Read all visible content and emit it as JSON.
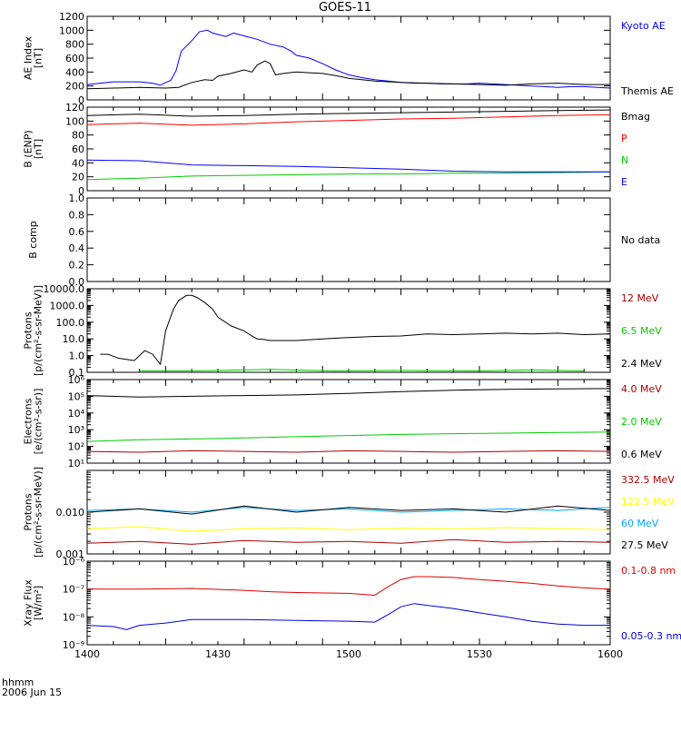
{
  "title": "GOES-11",
  "footer": {
    "line1": "hhmm",
    "line2": "2006 Jun 15"
  },
  "x_ticks": [
    "1400",
    "1430",
    "1500",
    "1530",
    "1600"
  ],
  "chart_data": [
    {
      "type": "line",
      "ylabel_lines": [
        "AE Index",
        "[nT]"
      ],
      "yscale": "linear",
      "ylim": [
        0,
        1200
      ],
      "yticks": [
        {
          "v": 0,
          "t": "0"
        },
        {
          "v": 200,
          "t": "200"
        },
        {
          "v": 400,
          "t": "400"
        },
        {
          "v": 600,
          "t": "600"
        },
        {
          "v": 800,
          "t": "800"
        },
        {
          "v": 1000,
          "t": "1000"
        },
        {
          "v": 1200,
          "t": "1200"
        }
      ],
      "series": [
        {
          "name": "Kyoto AE",
          "color": "#0000ff",
          "x": [
            0,
            10,
            20,
            25,
            28,
            30,
            32,
            34,
            36,
            40,
            43,
            46,
            48,
            53,
            56,
            60,
            65,
            70,
            75,
            78,
            80,
            85,
            90,
            95,
            100,
            105,
            110,
            115,
            120,
            125,
            130,
            135,
            140,
            145,
            150,
            155,
            160,
            165,
            170,
            175,
            180,
            185,
            190,
            195,
            200
          ],
          "y": [
            220,
            260,
            260,
            240,
            210,
            250,
            280,
            420,
            700,
            850,
            980,
            1000,
            960,
            910,
            960,
            920,
            870,
            800,
            760,
            700,
            640,
            600,
            520,
            430,
            360,
            320,
            290,
            270,
            250,
            240,
            240,
            230,
            230,
            230,
            240,
            230,
            220,
            210,
            200,
            190,
            180,
            190,
            190,
            180,
            170
          ]
        },
        {
          "name": "Themis AE",
          "color": "#000000",
          "x": [
            0,
            10,
            20,
            30,
            35,
            40,
            45,
            48,
            50,
            55,
            60,
            63,
            65,
            68,
            70,
            72,
            75,
            80,
            85,
            90,
            95,
            100,
            110,
            120,
            130,
            140,
            150,
            160,
            170,
            180,
            190,
            200
          ],
          "y": [
            160,
            170,
            180,
            170,
            180,
            250,
            290,
            280,
            340,
            380,
            430,
            400,
            500,
            560,
            520,
            360,
            380,
            400,
            390,
            380,
            350,
            310,
            270,
            250,
            240,
            230,
            220,
            210,
            230,
            240,
            220,
            220
          ]
        }
      ]
    },
    {
      "type": "line",
      "ylabel_lines": [
        "B (ENP)",
        "[nT]"
      ],
      "yscale": "linear",
      "ylim": [
        0,
        120
      ],
      "yticks": [
        {
          "v": 0,
          "t": "0"
        },
        {
          "v": 20,
          "t": "20"
        },
        {
          "v": 40,
          "t": "40"
        },
        {
          "v": 60,
          "t": "60"
        },
        {
          "v": 80,
          "t": "80"
        },
        {
          "v": 100,
          "t": "100"
        },
        {
          "v": 120,
          "t": "120"
        }
      ],
      "series": [
        {
          "name": "Bmag",
          "color": "#000000",
          "x": [
            0,
            20,
            40,
            60,
            80,
            100,
            120,
            140,
            160,
            180,
            200
          ],
          "y": [
            108,
            110,
            107,
            108,
            110,
            111,
            112,
            113,
            114,
            115,
            116
          ]
        },
        {
          "name": "P",
          "color": "#ff0000",
          "x": [
            0,
            20,
            40,
            60,
            80,
            100,
            120,
            140,
            160,
            180,
            200
          ],
          "y": [
            95,
            97,
            94,
            96,
            99,
            101,
            103,
            104,
            106,
            108,
            109
          ]
        },
        {
          "name": "N",
          "color": "#00cc00",
          "x": [
            0,
            20,
            40,
            60,
            80,
            100,
            120,
            140,
            160,
            180,
            200
          ],
          "y": [
            16,
            18,
            21,
            22,
            23,
            24,
            24,
            25,
            25,
            26,
            27
          ]
        },
        {
          "name": "E",
          "color": "#0000ff",
          "x": [
            0,
            20,
            40,
            60,
            80,
            100,
            120,
            140,
            160,
            180,
            200
          ],
          "y": [
            44,
            43,
            37,
            36,
            35,
            33,
            31,
            28,
            27,
            27,
            27
          ]
        }
      ]
    },
    {
      "type": "line",
      "ylabel_lines": [
        "B comp"
      ],
      "yscale": "linear",
      "ylim": [
        0,
        1
      ],
      "yticks": [
        {
          "v": 0,
          "t": "0.0"
        },
        {
          "v": 0.2,
          "t": "0.2"
        },
        {
          "v": 0.4,
          "t": "0.4"
        },
        {
          "v": 0.6,
          "t": "0.6"
        },
        {
          "v": 0.8,
          "t": "0.8"
        },
        {
          "v": 1.0,
          "t": "1.0"
        }
      ],
      "note": "No data",
      "series": []
    },
    {
      "type": "line",
      "ylabel_lines": [
        "Protons",
        "[p/(cm²-s-sr-MeV)]"
      ],
      "yscale": "log",
      "ylim": [
        0.1,
        10000
      ],
      "yticks": [
        {
          "v": 0.1,
          "t": "0.1"
        },
        {
          "v": 1,
          "t": "1.0"
        },
        {
          "v": 10,
          "t": "10.0"
        },
        {
          "v": 100,
          "t": "100.0"
        },
        {
          "v": 1000,
          "t": "1000.0"
        },
        {
          "v": 10000,
          "t": "10000.0"
        }
      ],
      "series": [
        {
          "name": "12 MeV",
          "color": "#aa0000",
          "x": [],
          "y": []
        },
        {
          "name": "6.5 MeV",
          "color": "#00cc00",
          "x": [
            20,
            40,
            70,
            95,
            120,
            150,
            170,
            190
          ],
          "y": [
            0.12,
            0.12,
            0.15,
            0.12,
            0.13,
            0.12,
            0.14,
            0.12
          ]
        },
        {
          "name": "2.4 MeV",
          "color": "#000000",
          "x": [
            5,
            8,
            12,
            15,
            18,
            20,
            22,
            25,
            28,
            30,
            33,
            35,
            38,
            40,
            42,
            45,
            48,
            50,
            55,
            60,
            63,
            65,
            68,
            70,
            75,
            80,
            90,
            100,
            110,
            120,
            130,
            140,
            150,
            160,
            170,
            180,
            190,
            200
          ],
          "y": [
            1.2,
            1.2,
            0.7,
            0.6,
            0.5,
            1.0,
            2.0,
            1.2,
            0.3,
            30,
            600,
            2000,
            4000,
            4000,
            3000,
            1500,
            600,
            200,
            60,
            30,
            15,
            10,
            9,
            8,
            8,
            8,
            10,
            12,
            14,
            15,
            20,
            18,
            20,
            22,
            20,
            22,
            18,
            20
          ]
        }
      ]
    },
    {
      "type": "line",
      "ylabel_lines": [
        "Electrons",
        "[e/(cm²-s-sr)]"
      ],
      "yscale": "log",
      "ylim": [
        10,
        1000000
      ],
      "yticks": [
        {
          "v": 10,
          "t": "10¹"
        },
        {
          "v": 100,
          "t": "10²"
        },
        {
          "v": 1000,
          "t": "10³"
        },
        {
          "v": 10000,
          "t": "10⁴"
        },
        {
          "v": 100000,
          "t": "10⁵"
        },
        {
          "v": 1000000,
          "t": "10⁶"
        }
      ],
      "series": [
        {
          "name": "4.0 MeV",
          "color": "#aa0000",
          "x": [
            0,
            20,
            40,
            60,
            80,
            100,
            120,
            140,
            160,
            180,
            200
          ],
          "y": [
            50,
            45,
            55,
            50,
            45,
            55,
            50,
            45,
            50,
            55,
            50
          ]
        },
        {
          "name": "2.0 MeV",
          "color": "#00cc00",
          "x": [
            0,
            20,
            40,
            60,
            80,
            100,
            120,
            140,
            160,
            180,
            200
          ],
          "y": [
            200,
            250,
            280,
            320,
            380,
            450,
            520,
            580,
            620,
            680,
            720
          ]
        },
        {
          "name": "0.6 MeV",
          "color": "#000000",
          "x": [
            0,
            20,
            40,
            60,
            80,
            100,
            120,
            140,
            160,
            180,
            200
          ],
          "y": [
            110000,
            90000,
            100000,
            110000,
            120000,
            150000,
            190000,
            230000,
            260000,
            280000,
            290000
          ]
        }
      ]
    },
    {
      "type": "line",
      "ylabel_lines": [
        "Protons",
        "[p/(cm²-s-sr-MeV)]"
      ],
      "yscale": "log",
      "ylim": [
        0.001,
        0.1
      ],
      "yticks": [
        {
          "v": 0.001,
          "t": "0.001"
        },
        {
          "v": 0.01,
          "t": "0.010"
        }
      ],
      "series": [
        {
          "name": "332.5 MeV",
          "color": "#aa0000",
          "x": [
            0,
            20,
            40,
            60,
            80,
            100,
            120,
            140,
            160,
            180,
            200
          ],
          "y": [
            0.0018,
            0.002,
            0.0017,
            0.0021,
            0.0019,
            0.002,
            0.0018,
            0.0022,
            0.0019,
            0.002,
            0.0019
          ]
        },
        {
          "name": "122.5 MeV",
          "color": "#ffff00",
          "x": [
            0,
            20,
            40,
            60,
            80,
            100,
            120,
            140,
            160,
            180,
            200
          ],
          "y": [
            0.004,
            0.0045,
            0.0035,
            0.004,
            0.0042,
            0.0038,
            0.0041,
            0.0039,
            0.0043,
            0.004,
            0.0038
          ]
        },
        {
          "name": "60 MeV",
          "color": "#00aaff",
          "x": [
            0,
            20,
            40,
            60,
            80,
            100,
            120,
            140,
            160,
            180,
            200
          ],
          "y": [
            0.011,
            0.012,
            0.01,
            0.013,
            0.011,
            0.012,
            0.01,
            0.011,
            0.012,
            0.011,
            0.013
          ]
        },
        {
          "name": "27.5 MeV",
          "color": "#000000",
          "x": [
            0,
            20,
            40,
            60,
            80,
            100,
            120,
            140,
            160,
            180,
            200
          ],
          "y": [
            0.01,
            0.012,
            0.009,
            0.014,
            0.01,
            0.013,
            0.011,
            0.012,
            0.01,
            0.014,
            0.011
          ]
        }
      ]
    },
    {
      "type": "line",
      "ylabel_lines": [
        "Xray Flux",
        "[W/m²]"
      ],
      "yscale": "log",
      "ylim": [
        1e-09,
        1e-06
      ],
      "yticks": [
        {
          "v": 1e-09,
          "t": "10⁻⁹"
        },
        {
          "v": 1e-08,
          "t": "10⁻⁸"
        },
        {
          "v": 1e-07,
          "t": "10⁻⁷"
        },
        {
          "v": 1e-06,
          "t": "10⁻⁶"
        }
      ],
      "series": [
        {
          "name": "0.1-0.8 nm",
          "color": "#dd0000",
          "x": [
            0,
            20,
            40,
            60,
            70,
            80,
            100,
            110,
            115,
            120,
            125,
            130,
            140,
            150,
            160,
            170,
            180,
            190,
            200
          ],
          "y": [
            1e-07,
            1e-07,
            1.05e-07,
            9e-08,
            8e-08,
            7.5e-08,
            7e-08,
            6e-08,
            1.2e-07,
            2.2e-07,
            2.8e-07,
            2.8e-07,
            2.6e-07,
            2.2e-07,
            1.9e-07,
            1.6e-07,
            1.3e-07,
            1.1e-07,
            1e-07
          ]
        },
        {
          "name": "0.05-0.3 nm",
          "color": "#0000dd",
          "x": [
            0,
            10,
            15,
            20,
            30,
            40,
            60,
            80,
            100,
            110,
            115,
            120,
            125,
            130,
            140,
            150,
            160,
            170,
            180,
            190,
            200
          ],
          "y": [
            5e-09,
            4.5e-09,
            3.5e-09,
            5e-09,
            6e-09,
            8e-09,
            8e-09,
            7.5e-09,
            7e-09,
            6.5e-09,
            1.2e-08,
            2.3e-08,
            3e-08,
            2.6e-08,
            2e-08,
            1.4e-08,
            1e-08,
            7e-09,
            5.5e-09,
            5e-09,
            5e-09
          ]
        }
      ]
    }
  ]
}
